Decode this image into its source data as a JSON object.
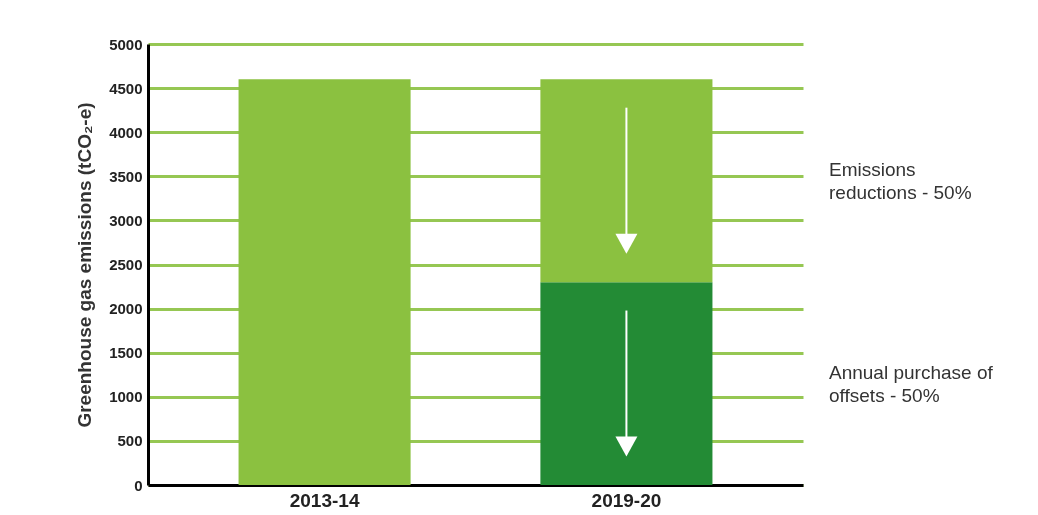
{
  "chart_data": {
    "type": "bar",
    "ylabel": "Greenhouse gas emissions (tCO₂-e)",
    "categories": [
      "2013-14",
      "2019-20"
    ],
    "stacked": true,
    "series": [
      {
        "name": "Annual purchase of offsets - 50%",
        "color": "#238b35",
        "values": [
          null,
          2300
        ]
      },
      {
        "name": "Emissions reductions - 50%",
        "color": "#8bc140",
        "values": [
          4600,
          2300
        ]
      }
    ],
    "ylim": [
      0,
      5000
    ],
    "yticks": [
      0,
      500,
      1000,
      1500,
      2000,
      2500,
      3000,
      3500,
      4000,
      4500,
      5000
    ],
    "grid": true
  }
}
